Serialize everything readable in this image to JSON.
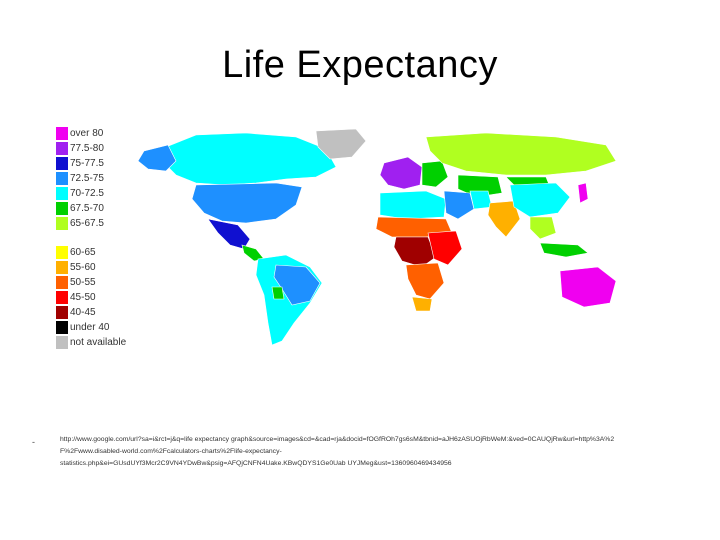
{
  "slide": {
    "title": "Life Expectancy"
  },
  "legend": {
    "upper": [
      {
        "label": "over 80",
        "color": "#f000f0"
      },
      {
        "label": "77.5-80",
        "color": "#a020f0"
      },
      {
        "label": "75-77.5",
        "color": "#1010d0"
      },
      {
        "label": "72.5-75",
        "color": "#1e90ff"
      },
      {
        "label": "70-72.5",
        "color": "#00ffff"
      },
      {
        "label": "67.5-70",
        "color": "#00d000"
      },
      {
        "label": "65-67.5",
        "color": "#b0ff20"
      }
    ],
    "lower": [
      {
        "label": "60-65",
        "color": "#ffff00"
      },
      {
        "label": "55-60",
        "color": "#ffb000"
      },
      {
        "label": "50-55",
        "color": "#ff6000"
      },
      {
        "label": "45-50",
        "color": "#ff0000"
      },
      {
        "label": "40-45",
        "color": "#a00000"
      },
      {
        "label": "under 40",
        "color": "#000000"
      },
      {
        "label": "not available",
        "color": "#c0c0c0"
      }
    ]
  },
  "source": {
    "bullet": "-",
    "lines": [
      "http://www.google.com/url?sa=i&rct=j&q=life expectancy graph&source=images&cd=&cad=rja&docid=fOGfROh7gs6sM&tbnid=aJH6zASUOjRbWeM:&ved=0CAUQjRw&url=http%3A%2",
      "F%2Fwww.disabled-world.com%2Fcalculators-charts%2Flife-expectancy-",
      "statistics.php&ei=GUsdUYf3Mcr2C9VN4YDwBw&psig=AFQjCNFN4Uake.KBwQDYS1Ge0Uab UYJMeg&ust=1360960469434956"
    ]
  },
  "map_colors": {
    "north_america_north": "#00ffff",
    "usa": "#1e90ff",
    "mexico": "#1010d0",
    "central_america": "#00d000",
    "south_america": "#00ffff",
    "brazil": "#1e90ff",
    "bolivia": "#00d000",
    "greenland": "#c0c0c0",
    "western_europe": "#a020f0",
    "eastern_europe": "#00d000",
    "russia": "#b0ff20",
    "north_africa": "#00ffff",
    "sahel": "#ff6000",
    "central_africa": "#a00000",
    "east_africa": "#ff0000",
    "southern_africa": "#ff6000",
    "south_africa": "#ffb000",
    "middle_east": "#1e90ff",
    "iran": "#00ffff",
    "central_asia": "#00d000",
    "india": "#ffb000",
    "china": "#00ffff",
    "southeast_asia": "#b0ff20",
    "japan": "#f000f0",
    "australia": "#f000f0",
    "indonesia": "#00d000",
    "mongolia": "#00d000"
  }
}
